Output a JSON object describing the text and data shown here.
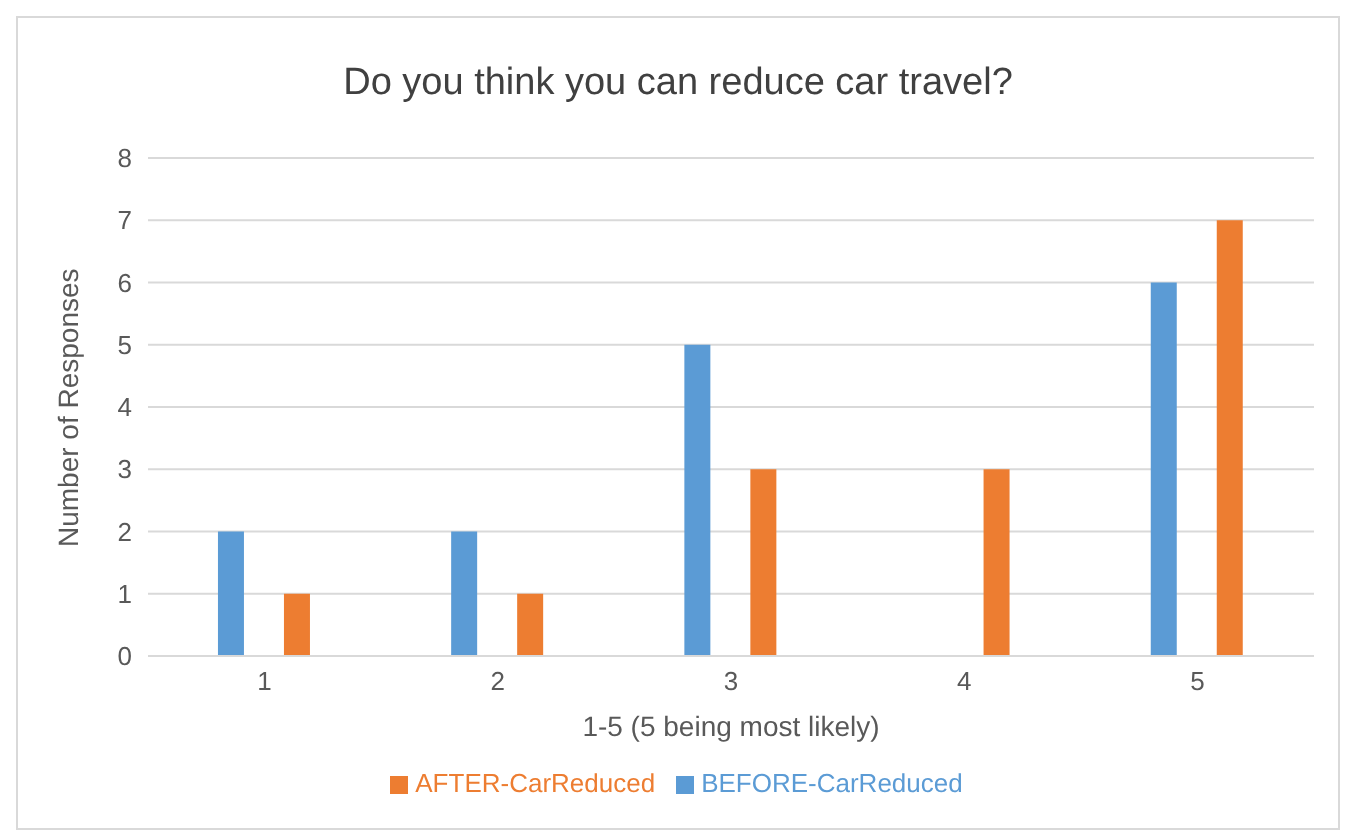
{
  "chart_data": {
    "type": "bar",
    "title": "Do you think you can reduce car travel?",
    "xlabel": "1-5 (5 being most likely)",
    "ylabel": "Number of Responses",
    "categories": [
      "1",
      "2",
      "3",
      "4",
      "5"
    ],
    "series": [
      {
        "name": "BEFORE-CarReduced",
        "color": "#5b9bd5",
        "values": [
          2,
          2,
          5,
          0,
          6
        ]
      },
      {
        "name": "AFTER-CarReduced",
        "color": "#ed7d31",
        "values": [
          1,
          1,
          3,
          3,
          7
        ]
      }
    ],
    "ylim": [
      0,
      8
    ],
    "yticks": [
      0,
      1,
      2,
      3,
      4,
      5,
      6,
      7,
      8
    ],
    "grid": "y",
    "legend": "bottom"
  }
}
